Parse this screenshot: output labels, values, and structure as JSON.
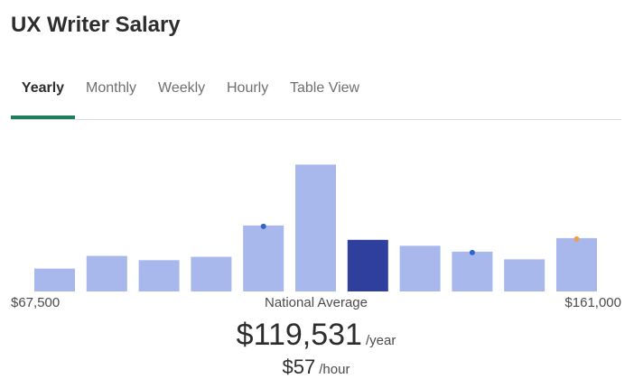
{
  "page": {
    "title": "UX Writer Salary"
  },
  "tabs": [
    {
      "label": "Yearly",
      "active": true
    },
    {
      "label": "Monthly",
      "active": false
    },
    {
      "label": "Weekly",
      "active": false
    },
    {
      "label": "Hourly",
      "active": false
    },
    {
      "label": "Table View",
      "active": false
    }
  ],
  "colors": {
    "bar": "#a8b8ec",
    "bar_highlight": "#2f3f9e",
    "dot_blue": "#2f64c8",
    "dot_orange": "#f0a04b",
    "tab_underline": "#1f7f5c"
  },
  "chart_data": {
    "type": "bar",
    "title": "",
    "xlabel": "National Average",
    "ylabel": "",
    "range_min_label": "$67,500",
    "range_max_label": "$161,000",
    "values": [
      27,
      42,
      37,
      41,
      78,
      150,
      61,
      54,
      47,
      38,
      63
    ],
    "highlight_index": 6,
    "markers": [
      {
        "bar": 4,
        "color": "blue"
      },
      {
        "bar": 8,
        "color": "blue"
      },
      {
        "bar": 10,
        "color": "orange"
      }
    ],
    "ylim": [
      0,
      160
    ],
    "grid": false,
    "legend": "none"
  },
  "average": {
    "yearly_value": "$119,531",
    "yearly_unit": "/year",
    "hourly_value": "$57",
    "hourly_unit": "/hour"
  }
}
